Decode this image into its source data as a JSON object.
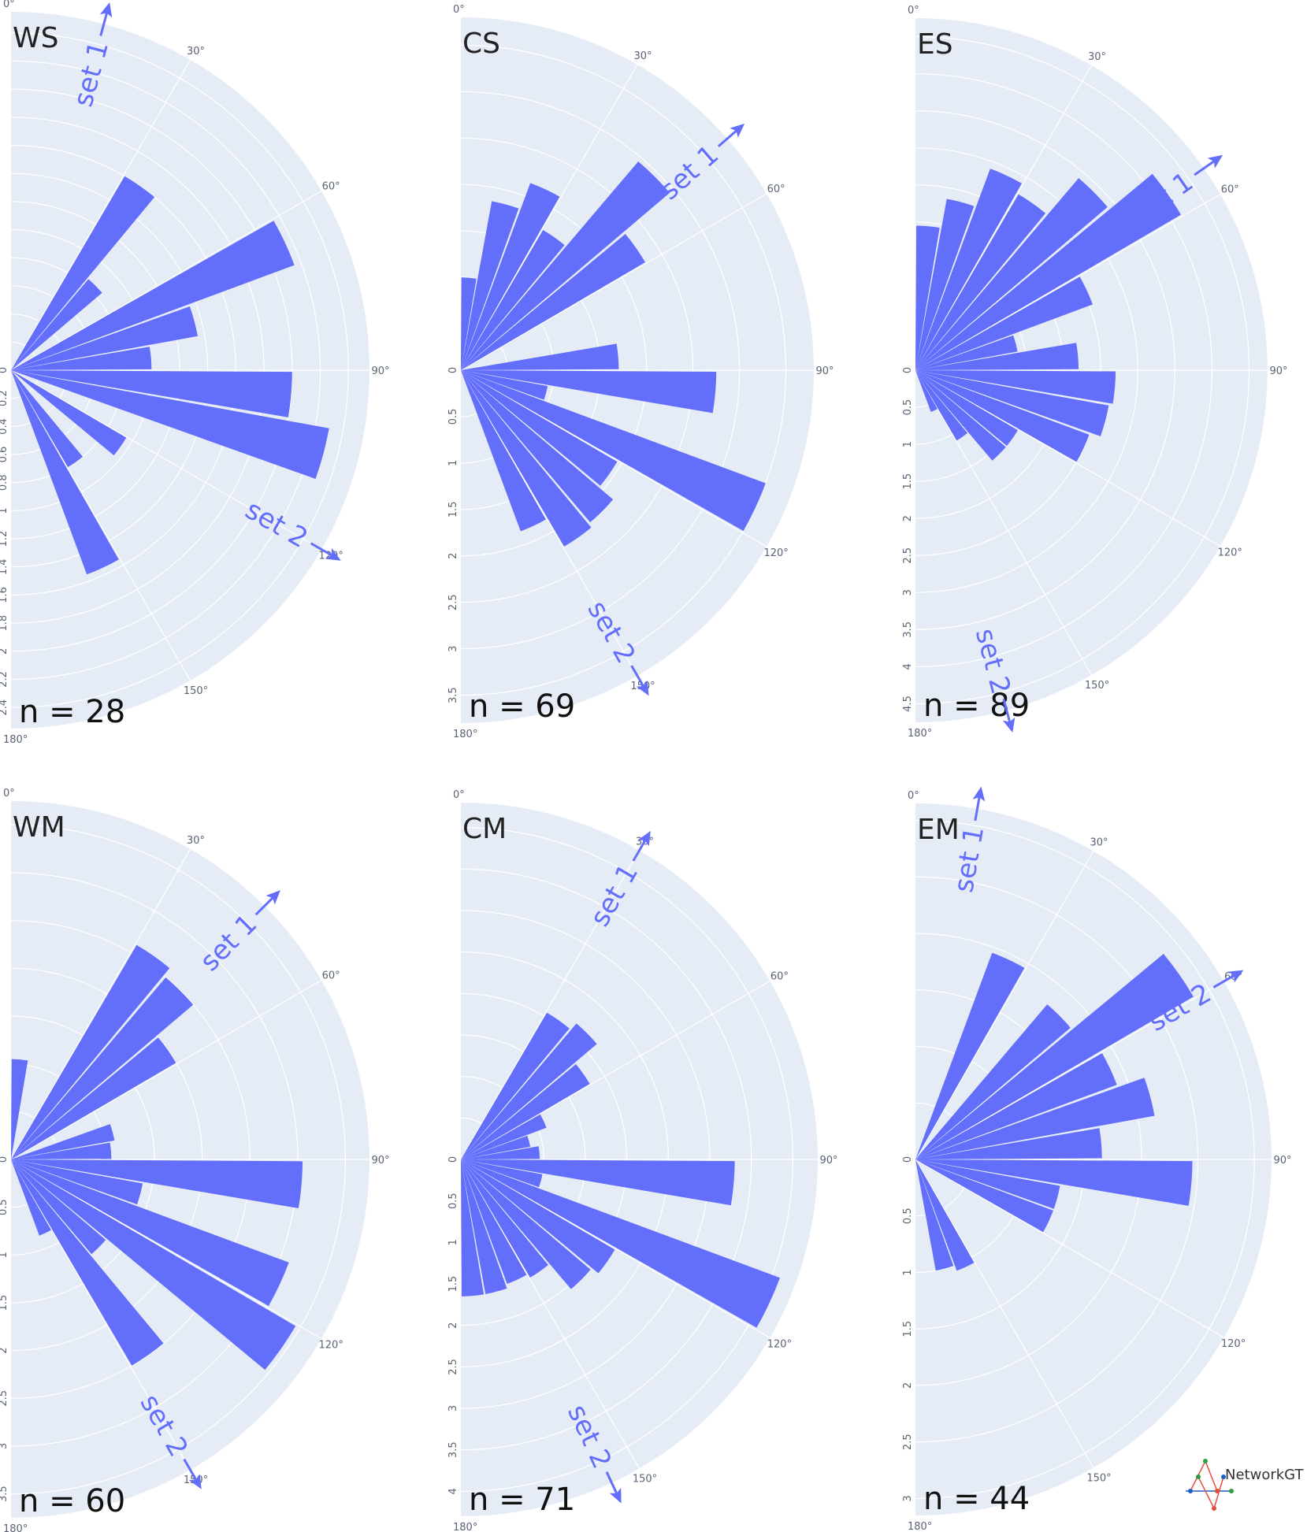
{
  "colors": {
    "bar": "#636efa",
    "background": "#e5ecf6",
    "grid": "#ffffff",
    "annotation": "#636efa"
  },
  "logo": {
    "text": "NetworkGT"
  },
  "chart_data": [
    {
      "type": "polar-bar",
      "panel": "WS",
      "n_label": "n = 28",
      "radial_ticks": [
        "0",
        "0.2",
        "0.4",
        "0.6",
        "0.8",
        "1",
        "1.2",
        "1.4",
        "1.6",
        "1.8",
        "2",
        "2.2",
        "2.4"
      ],
      "radial_max": 2.55,
      "angular_ticks": [
        "0°",
        "30°",
        "60°",
        "90°",
        "120°",
        "150°",
        "180°"
      ],
      "bars": [
        {
          "theta": 35,
          "r": 1.6
        },
        {
          "theta": 45,
          "r": 0.85
        },
        {
          "theta": 65,
          "r": 2.15
        },
        {
          "theta": 75,
          "r": 1.35
        },
        {
          "theta": 85,
          "r": 1.0
        },
        {
          "theta": 95,
          "r": 2.0
        },
        {
          "theta": 105,
          "r": 2.3
        },
        {
          "theta": 125,
          "r": 0.95
        },
        {
          "theta": 145,
          "r": 0.8
        },
        {
          "theta": 155,
          "r": 1.55
        }
      ],
      "annotations": [
        {
          "text": "set 1",
          "angle": 15
        },
        {
          "text": "set 2",
          "angle": 120
        }
      ]
    },
    {
      "type": "polar-bar",
      "panel": "CS",
      "n_label": "n = 69",
      "radial_ticks": [
        "0",
        "0.5",
        "1",
        "1.5",
        "2",
        "2.5",
        "3",
        "3.5"
      ],
      "radial_max": 3.8,
      "angular_ticks": [
        "0°",
        "30°",
        "60°",
        "90°",
        "120°",
        "150°",
        "180°"
      ],
      "bars": [
        {
          "theta": 5,
          "r": 1.0
        },
        {
          "theta": 15,
          "r": 1.85
        },
        {
          "theta": 25,
          "r": 2.15
        },
        {
          "theta": 35,
          "r": 1.75
        },
        {
          "theta": 45,
          "r": 2.95
        },
        {
          "theta": 55,
          "r": 2.3
        },
        {
          "theta": 85,
          "r": 1.7
        },
        {
          "theta": 95,
          "r": 2.75
        },
        {
          "theta": 105,
          "r": 0.95
        },
        {
          "theta": 115,
          "r": 3.5
        },
        {
          "theta": 125,
          "r": 1.95
        },
        {
          "theta": 135,
          "r": 2.15
        },
        {
          "theta": 145,
          "r": 2.2
        },
        {
          "theta": 155,
          "r": 1.85
        }
      ],
      "annotations": [
        {
          "text": "set 1",
          "angle": 49
        },
        {
          "text": "set 2",
          "angle": 150
        }
      ]
    },
    {
      "type": "polar-bar",
      "panel": "ES",
      "n_label": "n = 89",
      "radial_ticks": [
        "0",
        "0.5",
        "1",
        "1.5",
        "2",
        "2.5",
        "3",
        "3.5",
        "4",
        "4.5"
      ],
      "radial_max": 4.75,
      "angular_ticks": [
        "0°",
        "30°",
        "60°",
        "90°",
        "120°",
        "150°",
        "180°"
      ],
      "bars": [
        {
          "theta": 5,
          "r": 1.95
        },
        {
          "theta": 15,
          "r": 2.35
        },
        {
          "theta": 25,
          "r": 2.9
        },
        {
          "theta": 35,
          "r": 2.75
        },
        {
          "theta": 45,
          "r": 3.4
        },
        {
          "theta": 55,
          "r": 4.15
        },
        {
          "theta": 65,
          "r": 2.55
        },
        {
          "theta": 75,
          "r": 1.4
        },
        {
          "theta": 85,
          "r": 2.2
        },
        {
          "theta": 95,
          "r": 2.7
        },
        {
          "theta": 105,
          "r": 2.65
        },
        {
          "theta": 115,
          "r": 2.5
        },
        {
          "theta": 125,
          "r": 1.6
        },
        {
          "theta": 135,
          "r": 1.6
        },
        {
          "theta": 145,
          "r": 1.1
        },
        {
          "theta": 155,
          "r": 0.6
        }
      ],
      "annotations": [
        {
          "text": "set 1",
          "angle": 55
        },
        {
          "text": "set 2",
          "angle": 165
        }
      ]
    },
    {
      "type": "polar-bar",
      "panel": "WM",
      "n_label": "n = 60",
      "radial_ticks": [
        "0",
        "0.5",
        "1",
        "1.5",
        "2",
        "2.5",
        "3",
        "3.5"
      ],
      "radial_max": 3.75,
      "angular_ticks": [
        "0°",
        "30°",
        "60°",
        "90°",
        "120°",
        "150°",
        "180°"
      ],
      "bars": [
        {
          "theta": 5,
          "r": 1.05
        },
        {
          "theta": 35,
          "r": 2.6
        },
        {
          "theta": 45,
          "r": 2.5
        },
        {
          "theta": 55,
          "r": 2.0
        },
        {
          "theta": 75,
          "r": 1.1
        },
        {
          "theta": 85,
          "r": 1.05
        },
        {
          "theta": 95,
          "r": 3.05
        },
        {
          "theta": 105,
          "r": 1.4
        },
        {
          "theta": 115,
          "r": 3.1
        },
        {
          "theta": 125,
          "r": 3.45
        },
        {
          "theta": 135,
          "r": 1.3
        },
        {
          "theta": 145,
          "r": 2.5
        },
        {
          "theta": 155,
          "r": 0.85
        }
      ],
      "annotations": [
        {
          "text": "set 1",
          "angle": 45
        },
        {
          "text": "set 2",
          "angle": 150
        }
      ]
    },
    {
      "type": "polar-bar",
      "panel": "CM",
      "n_label": "n = 71",
      "radial_ticks": [
        "0",
        "0.5",
        "1",
        "1.5",
        "2",
        "2.5",
        "3",
        "3.5",
        "4"
      ],
      "radial_max": 4.3,
      "angular_ticks": [
        "0°",
        "30°",
        "60°",
        "90°",
        "120°",
        "150°",
        "180°"
      ],
      "bars": [
        {
          "theta": 35,
          "r": 2.05
        },
        {
          "theta": 45,
          "r": 2.15
        },
        {
          "theta": 55,
          "r": 1.8
        },
        {
          "theta": 65,
          "r": 1.1
        },
        {
          "theta": 75,
          "r": 0.85
        },
        {
          "theta": 85,
          "r": 0.95
        },
        {
          "theta": 95,
          "r": 3.3
        },
        {
          "theta": 105,
          "r": 1.0
        },
        {
          "theta": 115,
          "r": 4.1
        },
        {
          "theta": 125,
          "r": 2.15
        },
        {
          "theta": 135,
          "r": 2.05
        },
        {
          "theta": 145,
          "r": 1.65
        },
        {
          "theta": 155,
          "r": 1.6
        },
        {
          "theta": 165,
          "r": 1.65
        },
        {
          "theta": 175,
          "r": 1.65
        }
      ],
      "annotations": [
        {
          "text": "set 1",
          "angle": 30
        },
        {
          "text": "set 2",
          "angle": 155
        }
      ]
    },
    {
      "type": "polar-bar",
      "panel": "EM",
      "n_label": "n = 44",
      "radial_ticks": [
        "0",
        "0.5",
        "1",
        "1.5",
        "2",
        "2.5",
        "3"
      ],
      "radial_max": 3.15,
      "angular_ticks": [
        "0°",
        "30°",
        "60°",
        "90°",
        "120°",
        "150°",
        "180°"
      ],
      "bars": [
        {
          "theta": 25,
          "r": 1.95
        },
        {
          "theta": 45,
          "r": 1.8
        },
        {
          "theta": 55,
          "r": 2.85
        },
        {
          "theta": 65,
          "r": 1.9
        },
        {
          "theta": 75,
          "r": 2.15
        },
        {
          "theta": 85,
          "r": 1.65
        },
        {
          "theta": 95,
          "r": 2.45
        },
        {
          "theta": 105,
          "r": 1.3
        },
        {
          "theta": 115,
          "r": 1.3
        },
        {
          "theta": 155,
          "r": 1.05
        },
        {
          "theta": 165,
          "r": 1.0
        }
      ],
      "annotations": [
        {
          "text": "set 1",
          "angle": 10
        },
        {
          "text": "set 2",
          "angle": 60
        }
      ]
    }
  ]
}
